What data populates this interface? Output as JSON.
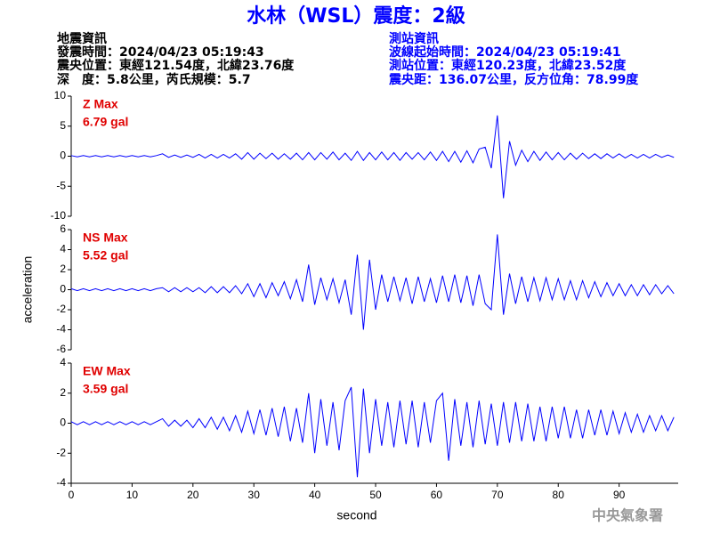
{
  "header": {
    "title": "水林（WSL）震度：2級",
    "left": [
      "地震資訊",
      "發震時間：2024/04/23 05:19:43",
      "震央位置：東經121.54度，北緯23.76度",
      "深　度：5.8公里，芮氏規模：5.7"
    ],
    "right": [
      "測站資訊",
      "波線起始時間：2024/04/23 05:19:41",
      "測站位置：東經120.23度，北緯23.52度",
      "震央距：136.07公里，反方位角：78.99度"
    ]
  },
  "footer": "中央氣象署",
  "chart_data": [
    {
      "type": "line",
      "annotations": [
        "Z Max",
        "6.79 gal"
      ],
      "color": "#0000ff",
      "xlim": [
        0,
        99.7
      ],
      "ylim": [
        -10,
        10
      ],
      "yticks": [
        10,
        5,
        0,
        -5,
        -10
      ],
      "x": [
        0,
        1,
        2,
        3,
        4,
        5,
        6,
        7,
        8,
        9,
        10,
        11,
        12,
        13,
        14,
        15,
        16,
        17,
        18,
        19,
        20,
        21,
        22,
        23,
        24,
        25,
        26,
        27,
        28,
        29,
        30,
        31,
        32,
        33,
        34,
        35,
        36,
        37,
        38,
        39,
        40,
        41,
        42,
        43,
        44,
        45,
        46,
        47,
        48,
        49,
        50,
        51,
        52,
        53,
        54,
        55,
        56,
        57,
        58,
        59,
        60,
        61,
        62,
        63,
        64,
        65,
        66,
        67,
        68,
        69,
        70,
        71,
        72,
        73,
        74,
        75,
        76,
        77,
        78,
        79,
        80,
        81,
        82,
        83,
        84,
        85,
        86,
        87,
        88,
        89,
        90,
        91,
        92,
        93,
        94,
        95,
        96,
        97,
        98,
        99
      ],
      "values": [
        0.1,
        -0.1,
        0.1,
        -0.1,
        0.1,
        -0.1,
        0.1,
        -0.1,
        0.1,
        -0.1,
        0.1,
        -0.1,
        0.1,
        -0.1,
        0.1,
        0.4,
        -0.2,
        0.2,
        -0.2,
        0.2,
        -0.2,
        0.3,
        -0.3,
        0.3,
        -0.3,
        0.3,
        -0.3,
        0.4,
        -0.5,
        0.6,
        -0.5,
        0.5,
        -0.4,
        0.5,
        -0.5,
        0.4,
        -0.5,
        0.5,
        -0.6,
        0.6,
        -0.6,
        0.6,
        -0.5,
        0.7,
        -0.6,
        0.5,
        -0.7,
        0.8,
        -0.7,
        0.6,
        -0.6,
        0.7,
        -0.6,
        0.6,
        -0.7,
        0.6,
        -0.5,
        0.6,
        -0.6,
        0.7,
        -0.7,
        0.8,
        -0.9,
        0.8,
        -1.0,
        0.9,
        -1.1,
        1.2,
        1.5,
        -2.0,
        6.79,
        -7.0,
        2.5,
        -1.5,
        1.0,
        -0.9,
        0.8,
        -0.7,
        0.7,
        -0.6,
        0.6,
        -0.6,
        0.5,
        -0.5,
        0.5,
        -0.4,
        0.4,
        -0.4,
        0.4,
        -0.3,
        0.4,
        -0.3,
        0.3,
        -0.3,
        0.3,
        -0.3,
        0.3,
        -0.2,
        0.2,
        -0.2
      ]
    },
    {
      "type": "line",
      "annotations": [
        "NS Max",
        "5.52 gal"
      ],
      "color": "#0000ff",
      "y_label": "acceleration",
      "xlim": [
        0,
        99.7
      ],
      "ylim": [
        -6,
        6
      ],
      "yticks": [
        6,
        4,
        2,
        0,
        -2,
        -4,
        -6
      ],
      "x": [
        0,
        1,
        2,
        3,
        4,
        5,
        6,
        7,
        8,
        9,
        10,
        11,
        12,
        13,
        14,
        15,
        16,
        17,
        18,
        19,
        20,
        21,
        22,
        23,
        24,
        25,
        26,
        27,
        28,
        29,
        30,
        31,
        32,
        33,
        34,
        35,
        36,
        37,
        38,
        39,
        40,
        41,
        42,
        43,
        44,
        45,
        46,
        47,
        48,
        49,
        50,
        51,
        52,
        53,
        54,
        55,
        56,
        57,
        58,
        59,
        60,
        61,
        62,
        63,
        64,
        65,
        66,
        67,
        68,
        69,
        70,
        71,
        72,
        73,
        74,
        75,
        76,
        77,
        78,
        79,
        80,
        81,
        82,
        83,
        84,
        85,
        86,
        87,
        88,
        89,
        90,
        91,
        92,
        93,
        94,
        95,
        96,
        97,
        98,
        99
      ],
      "values": [
        0.1,
        -0.1,
        0.1,
        -0.1,
        0.1,
        -0.1,
        0.1,
        -0.1,
        0.1,
        -0.1,
        0.1,
        -0.1,
        0.1,
        -0.1,
        0.1,
        0.2,
        -0.2,
        0.2,
        -0.2,
        0.2,
        -0.2,
        0.2,
        -0.3,
        0.3,
        -0.3,
        0.3,
        -0.3,
        0.4,
        -0.4,
        0.6,
        -0.7,
        0.6,
        -0.8,
        0.7,
        -0.6,
        0.8,
        -0.9,
        1.0,
        -1.2,
        2.5,
        -1.5,
        1.2,
        -1.0,
        1.1,
        -1.3,
        1.0,
        -2.5,
        3.5,
        -4.0,
        3.0,
        -2.0,
        1.5,
        -1.2,
        1.3,
        -1.1,
        1.2,
        -1.4,
        1.3,
        -1.2,
        1.1,
        -1.3,
        1.4,
        -1.2,
        1.5,
        -1.3,
        1.4,
        -1.6,
        1.5,
        -1.4,
        -2.0,
        5.52,
        -2.5,
        1.6,
        -1.4,
        1.3,
        -1.2,
        1.2,
        -1.1,
        1.2,
        -1.0,
        1.1,
        -1.0,
        0.9,
        -1.0,
        0.9,
        -0.8,
        0.8,
        -0.7,
        0.7,
        -0.6,
        0.6,
        -0.6,
        0.5,
        -0.6,
        0.5,
        -0.5,
        0.5,
        -0.4,
        0.4,
        -0.4
      ]
    },
    {
      "type": "line",
      "annotations": [
        "EW Max",
        "3.59 gal"
      ],
      "color": "#0000ff",
      "x_label": "second",
      "xlim": [
        0,
        99.7
      ],
      "xticks": [
        0,
        10,
        20,
        30,
        40,
        50,
        60,
        70,
        80,
        90
      ],
      "ylim": [
        -4,
        4
      ],
      "yticks": [
        4,
        2,
        0,
        -2,
        -4
      ],
      "x": [
        0,
        1,
        2,
        3,
        4,
        5,
        6,
        7,
        8,
        9,
        10,
        11,
        12,
        13,
        14,
        15,
        16,
        17,
        18,
        19,
        20,
        21,
        22,
        23,
        24,
        25,
        26,
        27,
        28,
        29,
        30,
        31,
        32,
        33,
        34,
        35,
        36,
        37,
        38,
        39,
        40,
        41,
        42,
        43,
        44,
        45,
        46,
        47,
        48,
        49,
        50,
        51,
        52,
        53,
        54,
        55,
        56,
        57,
        58,
        59,
        60,
        61,
        62,
        63,
        64,
        65,
        66,
        67,
        68,
        69,
        70,
        71,
        72,
        73,
        74,
        75,
        76,
        77,
        78,
        79,
        80,
        81,
        82,
        83,
        84,
        85,
        86,
        87,
        88,
        89,
        90,
        91,
        92,
        93,
        94,
        95,
        96,
        97,
        98,
        99
      ],
      "values": [
        0.1,
        -0.1,
        0.1,
        -0.1,
        0.1,
        -0.1,
        0.1,
        -0.1,
        0.1,
        -0.1,
        0.1,
        -0.1,
        0.1,
        -0.1,
        0.1,
        0.3,
        -0.2,
        0.2,
        -0.2,
        0.2,
        -0.3,
        0.3,
        -0.3,
        0.4,
        -0.4,
        0.4,
        -0.5,
        0.5,
        -0.6,
        0.8,
        -0.7,
        0.9,
        -0.8,
        1.0,
        -0.9,
        1.1,
        -1.2,
        1.0,
        -1.3,
        2.0,
        -2.0,
        1.6,
        -1.5,
        1.4,
        -1.8,
        1.5,
        2.4,
        -3.6,
        2.3,
        -2.0,
        1.6,
        -1.5,
        1.4,
        -1.6,
        1.5,
        -1.4,
        1.5,
        -1.6,
        1.4,
        -1.3,
        1.5,
        2.0,
        -2.5,
        1.6,
        -1.5,
        1.4,
        -1.6,
        1.5,
        -1.4,
        1.3,
        -1.5,
        1.4,
        -1.3,
        1.4,
        -1.2,
        1.3,
        -1.2,
        1.1,
        -1.2,
        1.1,
        -1.0,
        1.1,
        -1.0,
        0.9,
        -1.0,
        0.9,
        -0.8,
        0.9,
        -0.8,
        0.8,
        -0.7,
        0.7,
        -0.6,
        0.6,
        -0.6,
        0.5,
        -0.5,
        0.5,
        -0.5,
        0.4
      ]
    }
  ]
}
